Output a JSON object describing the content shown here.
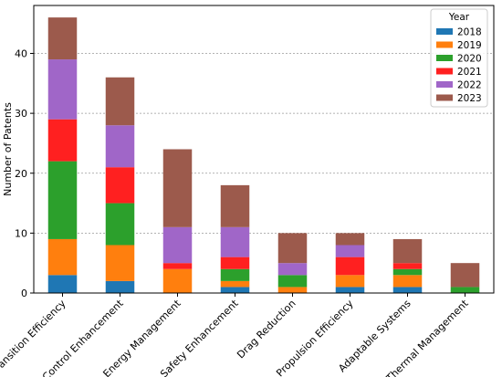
{
  "chart_data": {
    "type": "bar",
    "stacked": true,
    "ylabel": "Number of Patents",
    "xlabel": "",
    "ylim": [
      0,
      48
    ],
    "yticks": [
      0,
      10,
      20,
      30,
      40
    ],
    "grid": "horizontal dashed",
    "legend_title": "Year",
    "legend_position": "top-right",
    "categories": [
      "Transition Efficiency",
      "Control Enhancement",
      "Energy Management",
      "Safety Enhancement",
      "Drag Reduction",
      "Propulsion Efficiency",
      "Adaptable Systems",
      "Thermal Management"
    ],
    "series": [
      {
        "name": "2018",
        "color": "#1f77b4",
        "values": [
          3,
          2,
          0,
          1,
          0,
          1,
          1,
          0
        ]
      },
      {
        "name": "2019",
        "color": "#ff7f0e",
        "values": [
          6,
          6,
          4,
          1,
          1,
          2,
          2,
          0
        ]
      },
      {
        "name": "2020",
        "color": "#2ca02c",
        "values": [
          13,
          7,
          0,
          2,
          2,
          0,
          1,
          1
        ]
      },
      {
        "name": "2021",
        "color": "#ff2020",
        "values": [
          7,
          6,
          1,
          2,
          0,
          3,
          1,
          0
        ]
      },
      {
        "name": "2022",
        "color": "#a066c8",
        "values": [
          10,
          7,
          6,
          5,
          2,
          2,
          0,
          0
        ]
      },
      {
        "name": "2023",
        "color": "#9c5a4c",
        "values": [
          7,
          8,
          13,
          7,
          5,
          2,
          4,
          4
        ]
      }
    ]
  }
}
